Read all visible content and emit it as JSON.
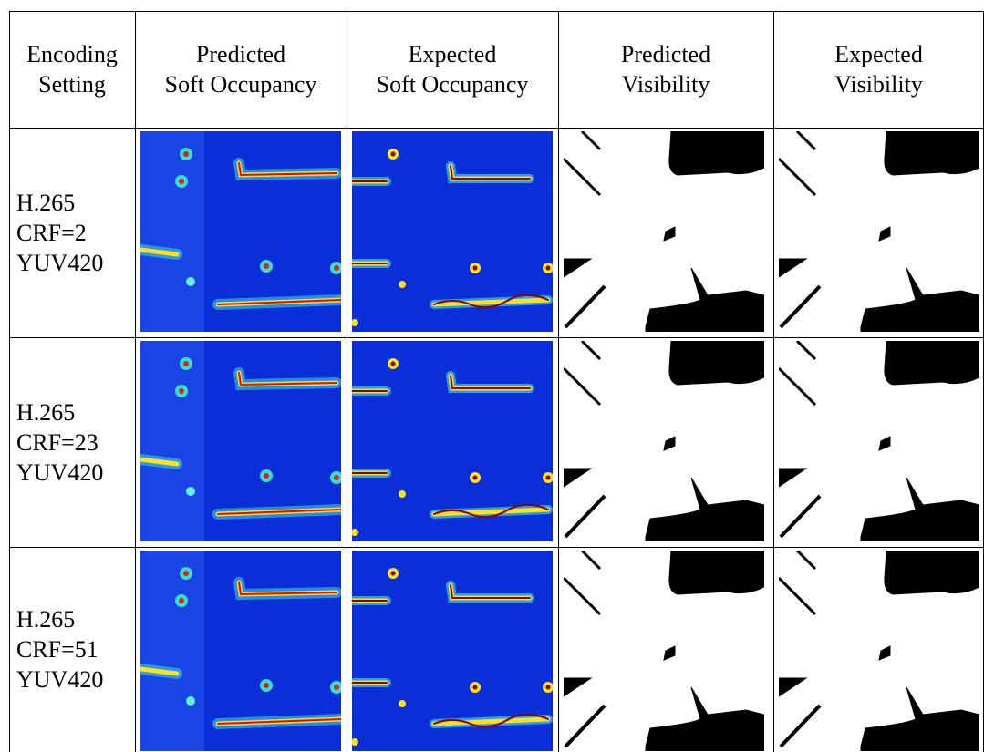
{
  "table": {
    "header": [
      [
        "Encoding",
        "Setting"
      ],
      [
        "Predicted",
        "Soft Occupancy"
      ],
      [
        "Expected",
        "Soft Occupancy"
      ],
      [
        "Predicted",
        "Visibility"
      ],
      [
        "Expected",
        "Visibility"
      ]
    ],
    "rows": [
      [
        "H.265",
        "CRF=2",
        "YUV420"
      ],
      [
        "H.265",
        "CRF=23",
        "YUV420"
      ],
      [
        "H.265",
        "CRF=51",
        "YUV420"
      ]
    ]
  }
}
